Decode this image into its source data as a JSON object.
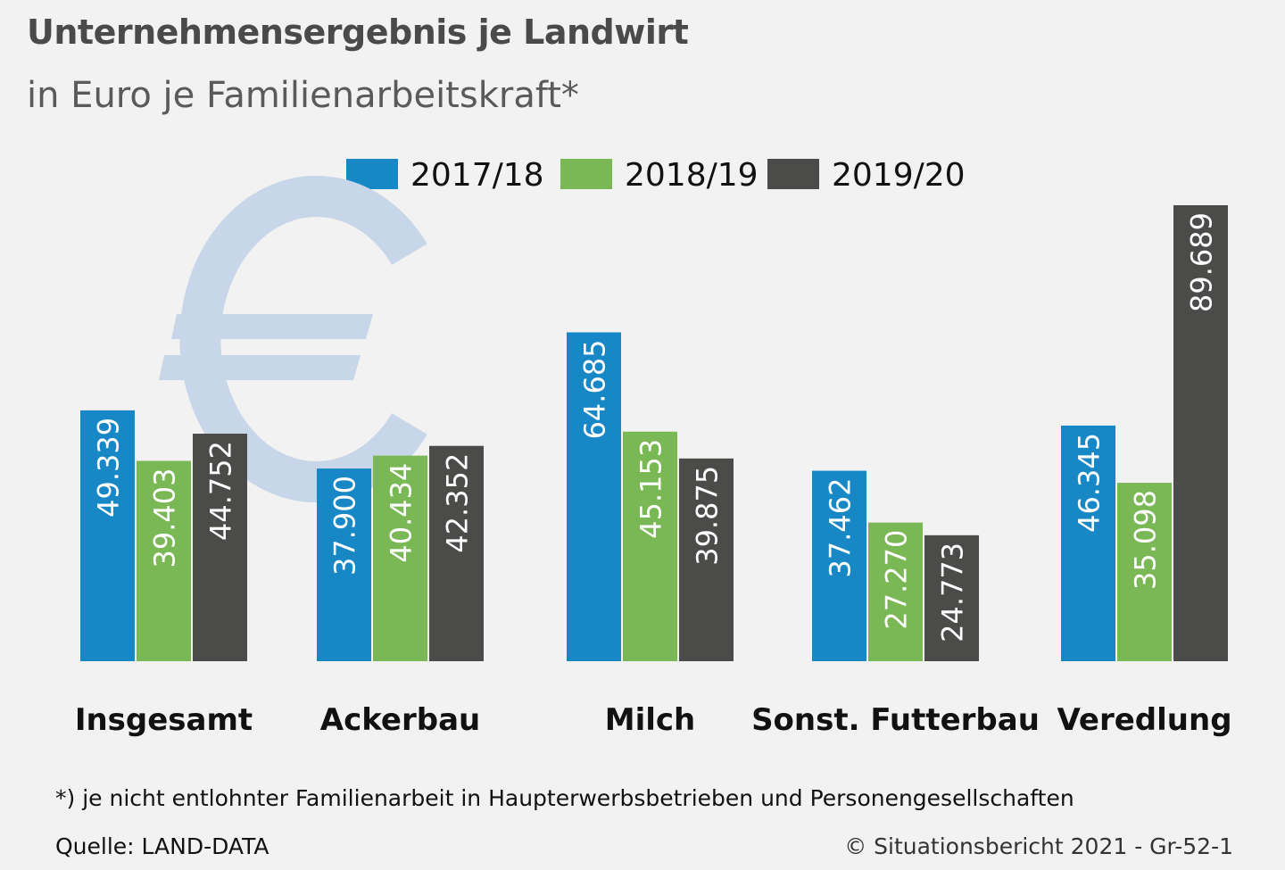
{
  "title": "Unternehmensergebnis je Landwirt",
  "subtitle": "in Euro je Familienarbeitskraft*",
  "colors": {
    "2017/18": "#1787c6",
    "2018/19": "#7ab755",
    "2019/20": "#4b4b4a",
    "euro": "#c7d6e8"
  },
  "legend": [
    {
      "label": "2017/18",
      "color": "#1787c6"
    },
    {
      "label": "2018/19",
      "color": "#7ab755"
    },
    {
      "label": "2019/20",
      "color": "#4b4b4a"
    }
  ],
  "background_icon": "euro-sign-icon",
  "chart_data": {
    "type": "bar",
    "title": "Unternehmensergebnis je Landwirt",
    "subtitle": "in Euro je Familienarbeitskraft*",
    "categories": [
      "Insgesamt",
      "Ackerbau",
      "Milch",
      "Sonst. Futterbau",
      "Veredlung"
    ],
    "series": [
      {
        "name": "2017/18",
        "values": [
          49339,
          37900,
          64685,
          37462,
          46345
        ],
        "labels": [
          "49.339",
          "37.900",
          "64.685",
          "37.462",
          "46.345"
        ]
      },
      {
        "name": "2018/19",
        "values": [
          39403,
          40434,
          45153,
          27270,
          35098
        ],
        "labels": [
          "39.403",
          "40.434",
          "45.153",
          "27.270",
          "35.098"
        ]
      },
      {
        "name": "2019/20",
        "values": [
          44752,
          42352,
          39875,
          24773,
          89689
        ],
        "labels": [
          "44.752",
          "42.352",
          "39.875",
          "24.773",
          "89.689"
        ]
      }
    ],
    "ylim": [
      0,
      90000
    ],
    "grid": false,
    "legend_position": "top"
  },
  "footnote": "*) je nicht entlohnter Familienarbeit in Haupterwerbsbetrieben und Personengesellschaften",
  "source": "Quelle: LAND-DATA",
  "copyright": "© Situationsbericht 2021 - Gr-52-1"
}
